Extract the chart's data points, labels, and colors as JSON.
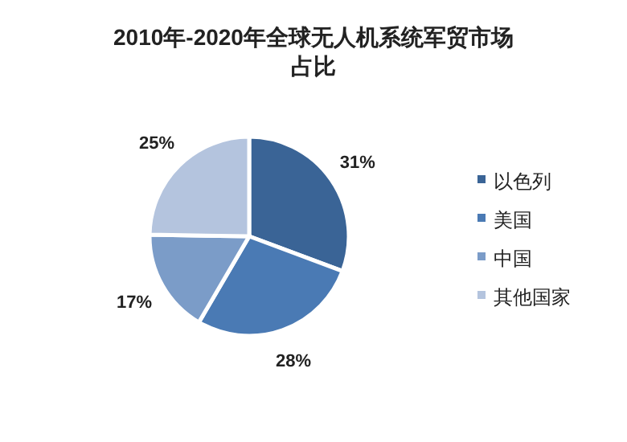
{
  "chart_data": {
    "type": "pie",
    "title": "2010年-2020年全球无人机系统军贸市场占比",
    "categories": [
      "以色列",
      "美国",
      "中国",
      "其他国家"
    ],
    "values": [
      31,
      28,
      17,
      25
    ],
    "value_labels": [
      "31%",
      "28%",
      "17%",
      "25%"
    ],
    "colors": [
      "#3a6496",
      "#4a7ab4",
      "#7b9cc8",
      "#b4c4de"
    ],
    "legend": "right"
  }
}
